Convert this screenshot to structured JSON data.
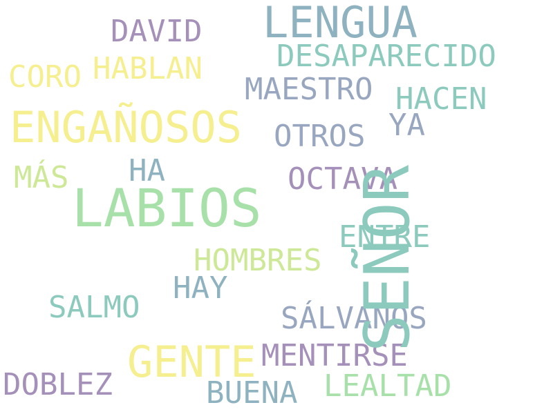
{
  "words": {
    "lengua": "LENGUA",
    "david": "DAVID",
    "desaparecido": "DESAPARECIDO",
    "coro": "CORO",
    "hablan": "HABLAN",
    "maestro": "MAESTRO",
    "hacen": "HACEN",
    "enganosos": "ENGAÑOSOS",
    "otros": "OTROS",
    "ya": "YA",
    "ha": "HA",
    "mas": "MÁS",
    "octava": "OCTAVA",
    "labios": "LABIOS",
    "senor": "SEÑOR",
    "entre": "ENTRE",
    "hombres": "HOMBRES",
    "hay": "HAY",
    "salmo": "SALMO",
    "salvanos": "SÁLVANOS",
    "gente": "GENTE",
    "mentirse": "MENTIRSE",
    "doblez": "DOBLEZ",
    "lealtad": "LEALTAD",
    "buena": "BUENA"
  },
  "colors": {
    "teal": "#8bcabc",
    "blue": "#8eb2bf",
    "slate": "#98a7bf",
    "purple": "#a490b9",
    "green": "#a7e0a8",
    "yellow": "#f5ef90",
    "lime": "#cde896",
    "background": "#ffffff"
  }
}
